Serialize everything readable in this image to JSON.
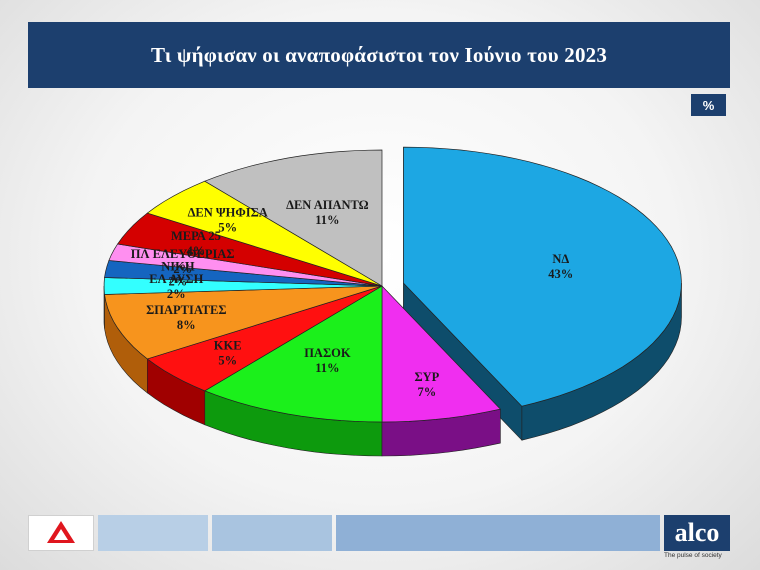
{
  "title": "Τι ψήφισαν οι αναποφάσιστοι τον Ιούνιο του 2023",
  "unit_badge": "%",
  "footer": {
    "brand": "alco",
    "tagline": "The pulse of society",
    "left_logo_text": "ΑΝΤ1 NEWS"
  },
  "colors": {
    "banner": "#1c3f6e",
    "footer_bar_1": "#b8cfe6",
    "footer_bar_2": "#a9c4e0",
    "footer_bar_3": "#8fb0d6"
  },
  "chart_data": {
    "type": "pie",
    "style": "3d-exploded",
    "unit": "%",
    "slices": [
      {
        "label": "ΝΔ",
        "value": 43,
        "value_label": "43%",
        "color": "#1da7e3",
        "side_color": "#0e4d6b"
      },
      {
        "label": "ΣΥΡ",
        "value": 7,
        "value_label": "7%",
        "color": "#f02ef0",
        "side_color": "#7a0f86"
      },
      {
        "label": "ΠΑΣΟΚ",
        "value": 11,
        "value_label": "11%",
        "color": "#1bf01b",
        "side_color": "#0d9a0d"
      },
      {
        "label": "ΚΚΕ",
        "value": 5,
        "value_label": "5%",
        "color": "#ff1010",
        "side_color": "#a00000"
      },
      {
        "label": "ΣΠΑΡΤΙΑΤΕΣ",
        "value": 8,
        "value_label": "8%",
        "color": "#f7941d",
        "side_color": "#b05e0a"
      },
      {
        "label": "ΕΛ ΛΥΣΗ",
        "value": 2,
        "value_label": "2%",
        "color": "#33ffff",
        "side_color": "#129a9a"
      },
      {
        "label": "ΝΙΚΗ",
        "value": 2,
        "value_label": "2%",
        "color": "#1565c0",
        "side_color": "#0b3a72"
      },
      {
        "label": "ΠΛ ΕΛΕΥΘΕΡΙΑΣ",
        "value": 2,
        "value_label": "2%",
        "color": "#ff8ff0",
        "side_color": "#a8509e"
      },
      {
        "label": "ΜΕΡΑ 25",
        "value": 4,
        "value_label": "4%",
        "color": "#d40000",
        "side_color": "#7a0000"
      },
      {
        "label": "ΔΕΝ ΨΗΦΙΣΑ",
        "value": 5,
        "value_label": "5%",
        "color": "#ffff00",
        "side_color": "#a8a800"
      },
      {
        "label": "ΔΕΝ ΑΠΑΝΤΩ",
        "value": 11,
        "value_label": "11%",
        "color": "#c0c0c0",
        "side_color": "#7c7c7c"
      }
    ]
  }
}
